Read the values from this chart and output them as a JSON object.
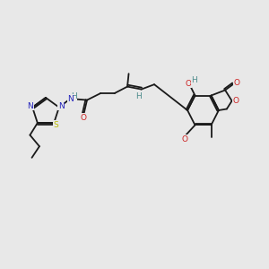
{
  "background_color": "#e8e8e8",
  "bond_color": "#1a1a1a",
  "nitrogen_color": "#2222bb",
  "oxygen_color": "#cc2020",
  "sulfur_color": "#bbbb00",
  "hydrogen_color": "#4a8a8a",
  "bond_width": 1.3,
  "figsize": [
    3.0,
    3.0
  ],
  "dpi": 100,
  "xlim": [
    0,
    10
  ],
  "ylim": [
    0,
    10
  ]
}
